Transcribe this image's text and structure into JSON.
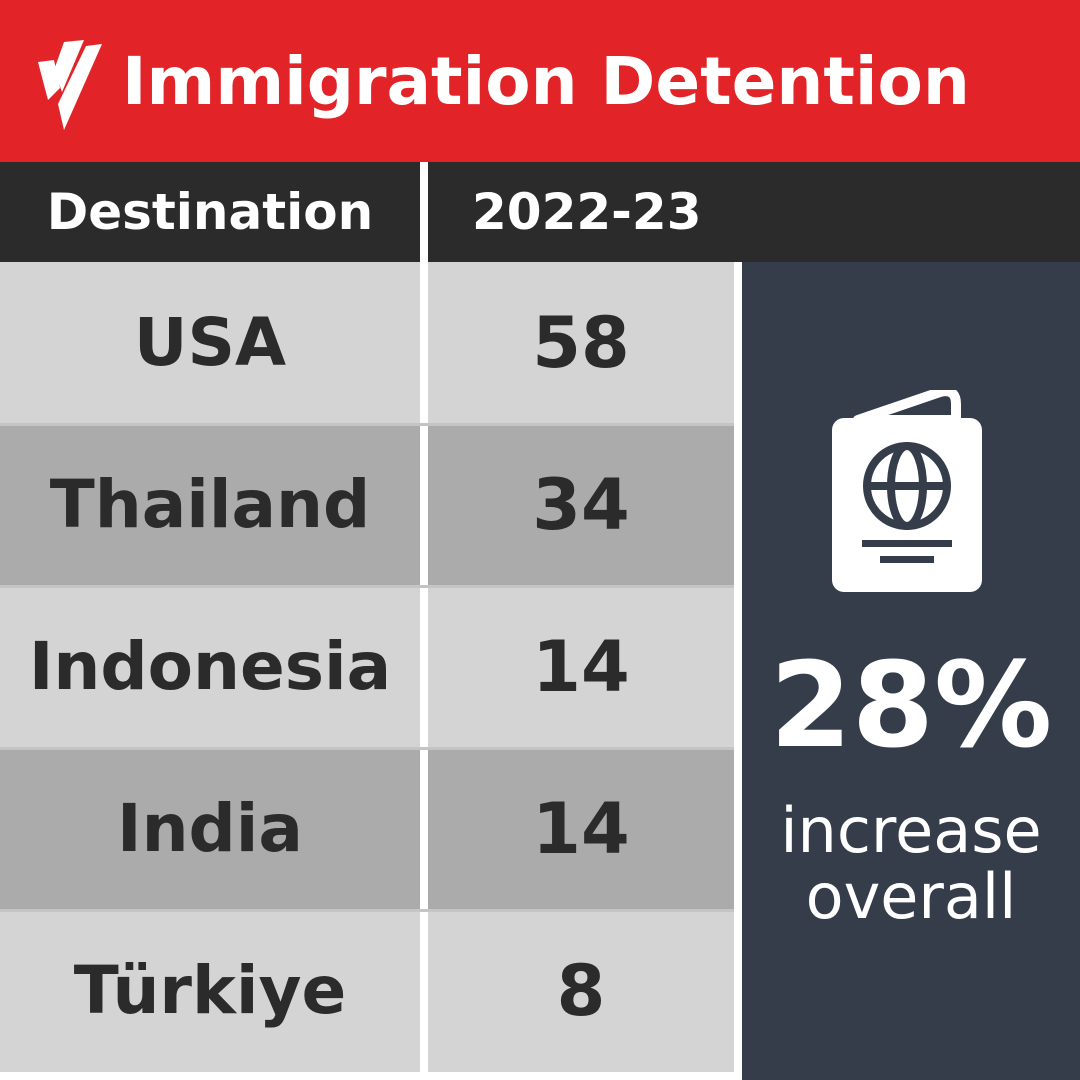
{
  "header": {
    "title": "Immigration Detention",
    "logo_icon": "sbs-logo-icon",
    "color": "#e22428"
  },
  "table": {
    "columns": [
      "Destination",
      "2022-23"
    ]
  },
  "chart_data": {
    "type": "table",
    "title": "Immigration Detention",
    "columns": [
      "Destination",
      "2022-23"
    ],
    "rows": [
      {
        "destination": "USA",
        "value": 58
      },
      {
        "destination": "Thailand",
        "value": 34
      },
      {
        "destination": "Indonesia",
        "value": 14
      },
      {
        "destination": "India",
        "value": 14
      },
      {
        "destination": "Türkiye",
        "value": 8
      }
    ],
    "row_colors": [
      "#d4d4d4",
      "#ababab"
    ]
  },
  "callout": {
    "icon": "passport-icon",
    "percent": "28%",
    "line1": "increase",
    "line2": "overall",
    "background": "#353c4a"
  }
}
